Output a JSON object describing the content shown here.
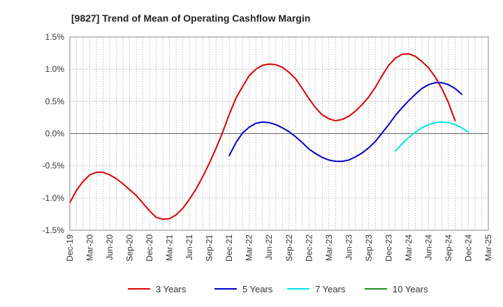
{
  "chart_data": {
    "type": "line",
    "title": "[9827]  Trend of Mean of Operating Cashflow Margin",
    "xlabel": "",
    "ylabel": "",
    "ylim": [
      -1.5,
      1.5
    ],
    "yticks": [
      1.5,
      1.0,
      0.5,
      0.0,
      -0.5,
      -1.0,
      -1.5
    ],
    "ytick_labels": [
      "1.5%",
      "1.0%",
      "0.5%",
      "0.0%",
      "-0.5%",
      "-1.0%",
      "-1.5%"
    ],
    "xtick_labels": [
      "Dec-19",
      "Mar-20",
      "Jun-20",
      "Sep-20",
      "Dec-20",
      "Mar-21",
      "Jun-21",
      "Sep-21",
      "Dec-21",
      "Mar-22",
      "Jun-22",
      "Sep-22",
      "Dec-22",
      "Mar-23",
      "Jun-23",
      "Sep-23",
      "Dec-23",
      "Mar-24",
      "Jun-24",
      "Sep-24",
      "Dec-24",
      "Mar-25"
    ],
    "grid": true,
    "legend_position": "bottom",
    "series": [
      {
        "name": "3 Years",
        "color": "#dd0000",
        "start_index": 0,
        "values": [
          -1.07,
          -0.88,
          -0.74,
          -0.64,
          -0.6,
          -0.6,
          -0.64,
          -0.7,
          -0.78,
          -0.87,
          -0.96,
          -1.08,
          -1.2,
          -1.3,
          -1.33,
          -1.32,
          -1.26,
          -1.16,
          -1.02,
          -0.86,
          -0.67,
          -0.46,
          -0.23,
          0.02,
          0.3,
          0.55,
          0.73,
          0.9,
          1.0,
          1.06,
          1.08,
          1.07,
          1.03,
          0.95,
          0.85,
          0.7,
          0.54,
          0.4,
          0.29,
          0.23,
          0.2,
          0.22,
          0.27,
          0.35,
          0.45,
          0.57,
          0.72,
          0.9,
          1.06,
          1.17,
          1.23,
          1.24,
          1.2,
          1.12,
          1.02,
          0.88,
          0.7,
          0.48,
          0.2
        ]
      },
      {
        "name": "5 Years",
        "color": "#0000cc",
        "start_index": 24,
        "values": [
          -0.34,
          -0.14,
          0.01,
          0.1,
          0.16,
          0.18,
          0.17,
          0.14,
          0.09,
          0.03,
          -0.05,
          -0.14,
          -0.24,
          -0.31,
          -0.37,
          -0.41,
          -0.43,
          -0.43,
          -0.41,
          -0.36,
          -0.3,
          -0.22,
          -0.12,
          0.01,
          0.14,
          0.28,
          0.4,
          0.51,
          0.61,
          0.7,
          0.76,
          0.79,
          0.79,
          0.76,
          0.7,
          0.61
        ]
      },
      {
        "name": "7 Years",
        "color": "#00e5ee",
        "start_index": 49,
        "values": [
          -0.27,
          -0.16,
          -0.06,
          0.02,
          0.09,
          0.14,
          0.17,
          0.18,
          0.17,
          0.14,
          0.09,
          0.02
        ]
      },
      {
        "name": "10 Years",
        "color": "#228b22",
        "start_index": 0,
        "values": []
      }
    ]
  }
}
